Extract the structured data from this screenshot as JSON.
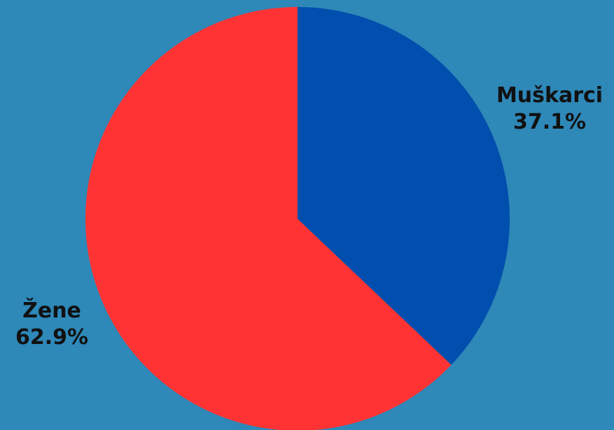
{
  "page": {
    "background": "#2e88b8"
  },
  "chart_data": {
    "type": "pie",
    "title": "",
    "start_angle_deg": 0,
    "direction": "clockwise",
    "slices": [
      {
        "label": "Muškarci",
        "value": 37.1,
        "value_label": "37.1%",
        "color": "#004ead"
      },
      {
        "label": "Žene",
        "value": 62.9,
        "value_label": "62.9%",
        "color": "#ff3333"
      }
    ]
  }
}
